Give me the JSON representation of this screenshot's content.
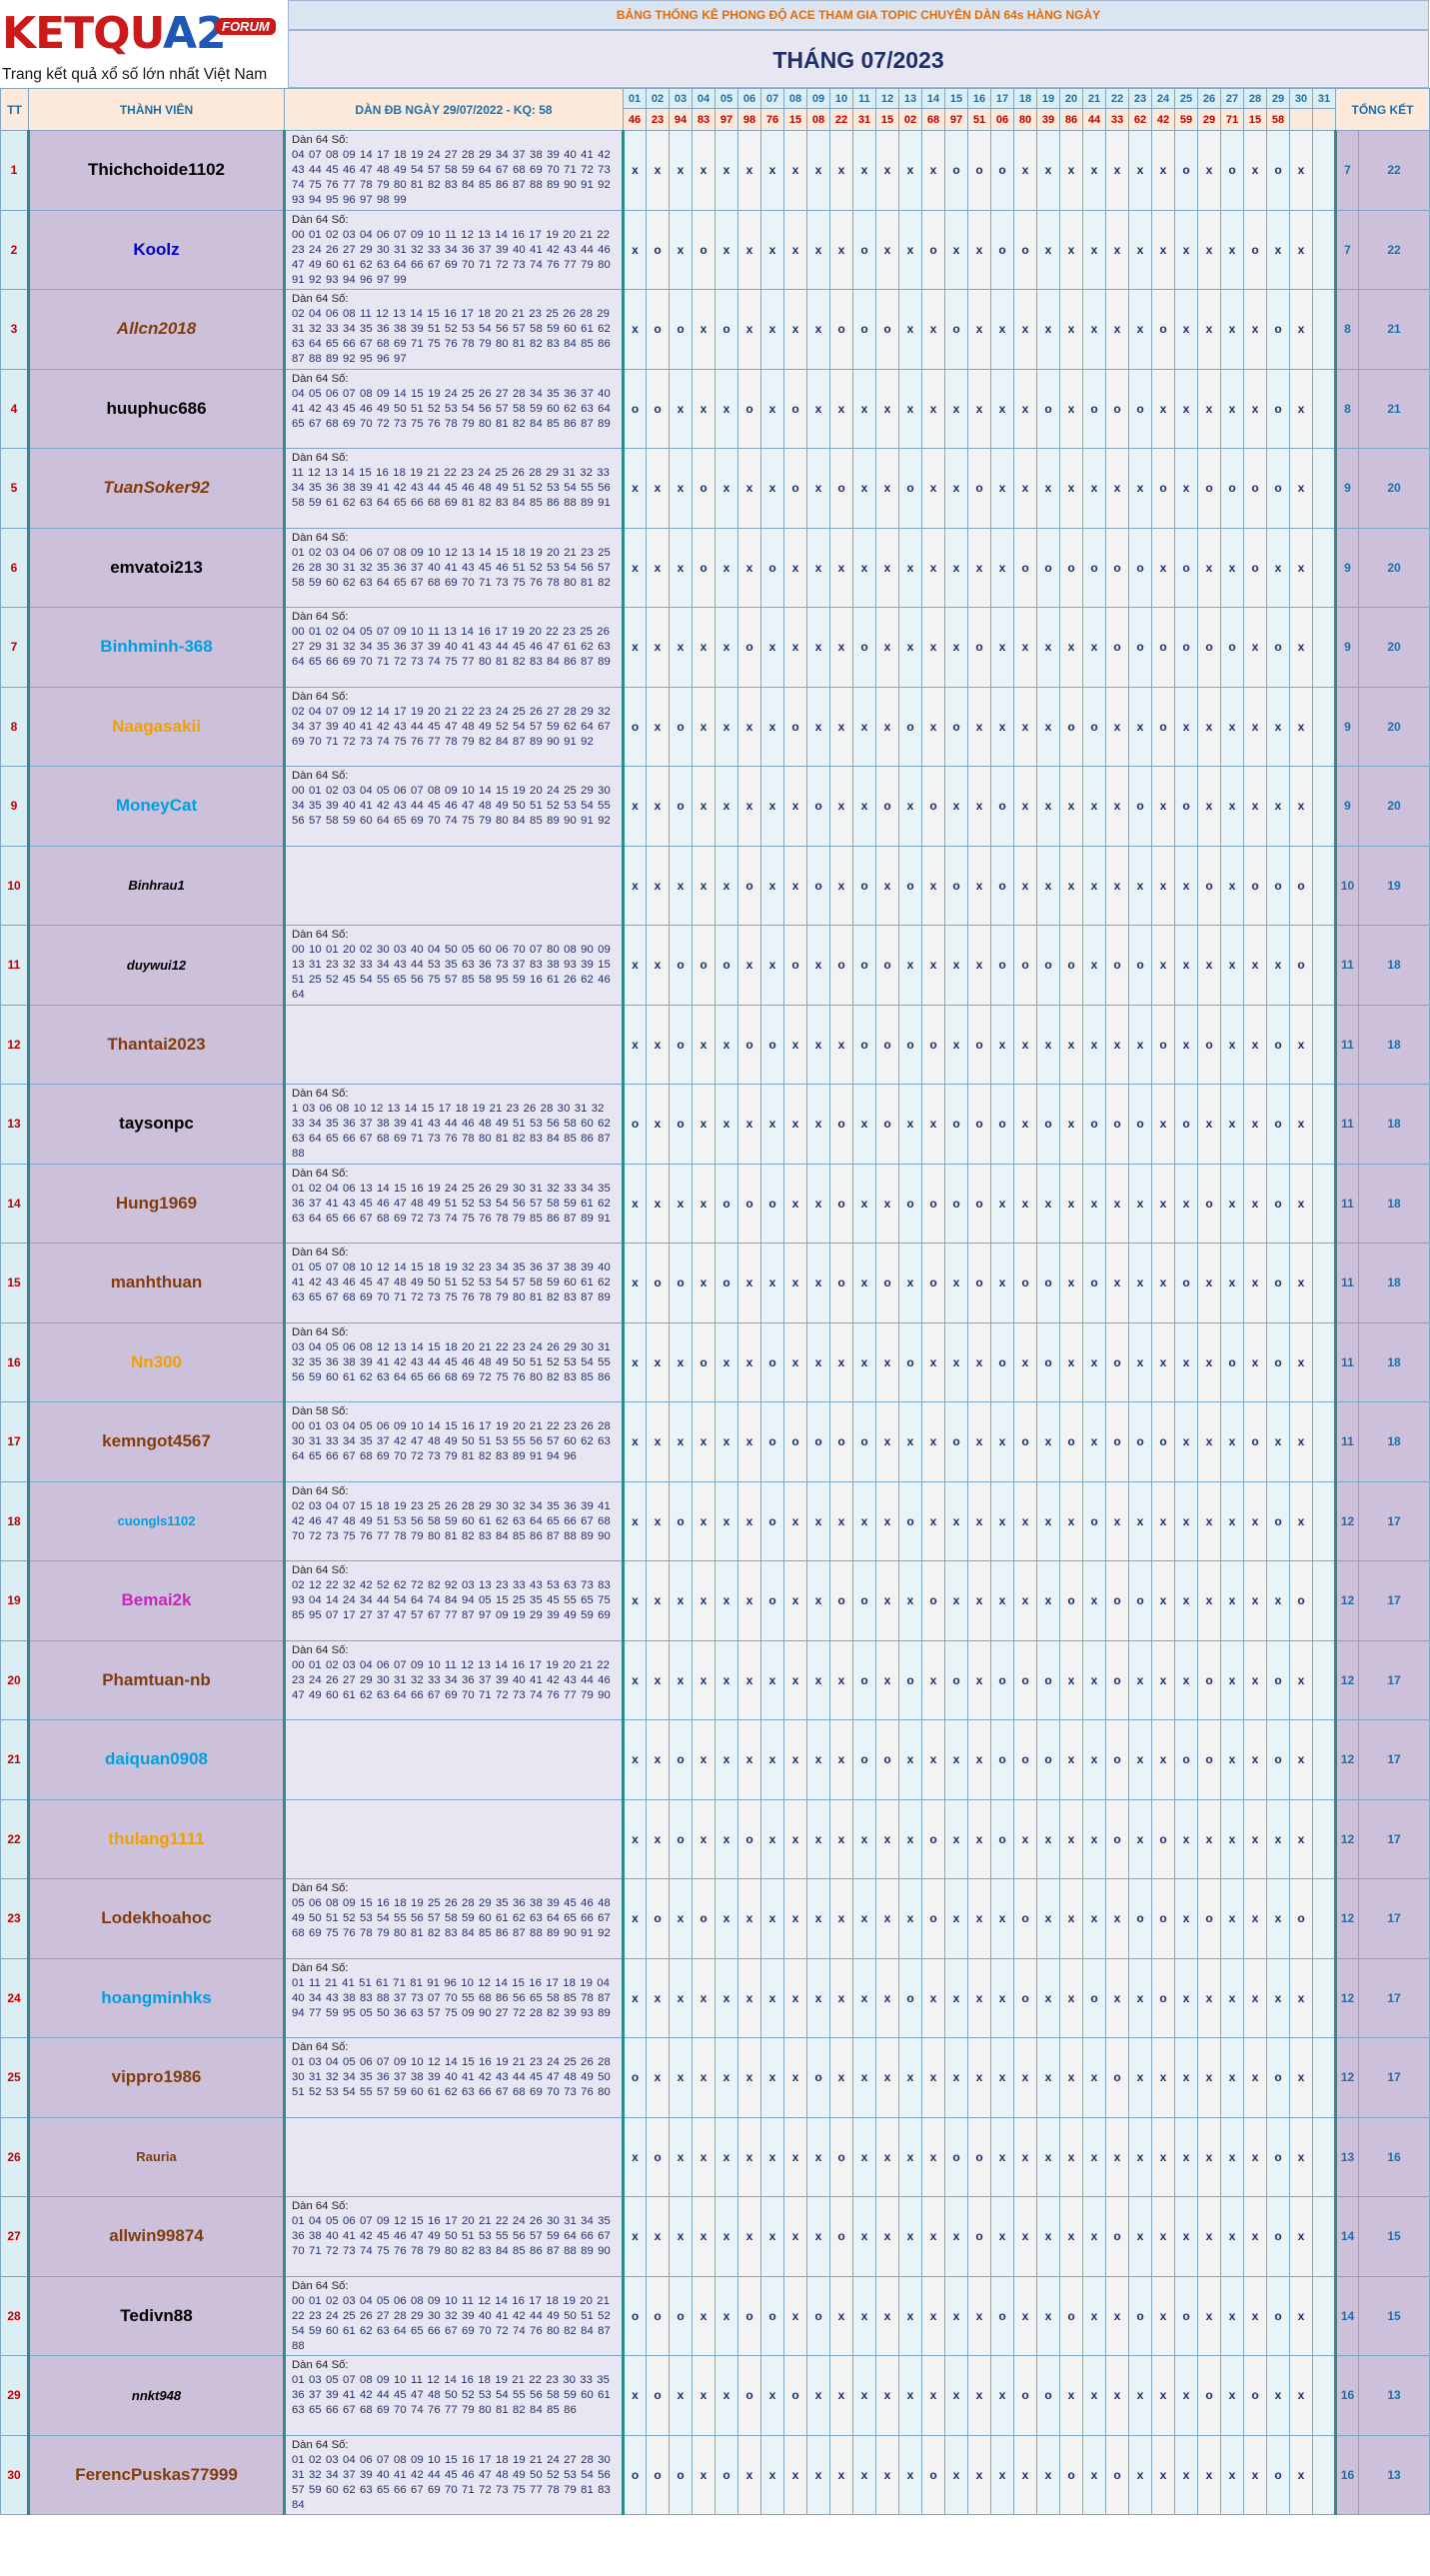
{
  "logo": {
    "part1": "KETQU",
    "part2": "A2",
    "forum": "FORUM",
    "slogan": "Trang kết quả xổ số lớn nhất Việt Nam"
  },
  "banner": "BẢNG THỐNG KÊ PHONG ĐỘ ACE THAM GIA TOPIC CHUYÊN DÀN 64s HÀNG NGÀY",
  "month_title": "THÁNG 07/2023",
  "headers": {
    "tt": "TT",
    "member": "THÀNH VIÊN",
    "dan": "DÀN ĐB NGÀY 29/07/2022 - KQ: 58",
    "summary": "TỔNG KẾT"
  },
  "days": [
    "01",
    "02",
    "03",
    "04",
    "05",
    "06",
    "07",
    "08",
    "09",
    "10",
    "11",
    "12",
    "13",
    "14",
    "15",
    "16",
    "17",
    "18",
    "19",
    "20",
    "21",
    "22",
    "23",
    "24",
    "25",
    "26",
    "27",
    "28",
    "29",
    "30",
    "31"
  ],
  "results": [
    "46",
    "23",
    "94",
    "83",
    "97",
    "98",
    "76",
    "15",
    "08",
    "22",
    "31",
    "15",
    "02",
    "68",
    "97",
    "51",
    "06",
    "80",
    "39",
    "86",
    "44",
    "33",
    "62",
    "42",
    "59",
    "29",
    "71",
    "15",
    "58",
    "",
    ""
  ],
  "colors": {
    "red": "#c00000",
    "blue": "#1f6fa8",
    "teal_border": "#2e8b8b",
    "member_bg": "#ccc0da"
  },
  "rows": [
    {
      "tt": "1",
      "name": "Thichchoide1102",
      "color": "#000000",
      "style": "normal",
      "dan_label": "Dàn 64 Số:",
      "dan": "04 07 08 09 14 17 18 19 24 27 28 29 34 37 38 39 40 41 42 43 44 45 46 47 48 49 54 57 58 59 64 67 68 69 70 71 72 73 74 75 76 77 78 79 80 81 82 83 84 85 86 87 88 89 90 91 92 93 94 95 96 97 98 99",
      "marks": "xxxxxxxxxxxxxxoooxxxxxxxoxoxox",
      "w": "7",
      "s": "22"
    },
    {
      "tt": "2",
      "name": "Koolz",
      "color": "#0000cc",
      "style": "normal",
      "dan_label": "Dàn 64 Số:",
      "dan": "00 01 02 03 04 06 07 09 10 11 12 13 14 16 17 19 20 21 22 23 24 26 27 29 30 31 32 33 34 36 37 39 40 41 42 43 44 46 47 49 60 61 62 63 64 66 67 69 70 71 72 73 74 76 77 79 80 91 92 93 94 96 97 99",
      "marks": "xoxoxxxxxxoxxoxxooxxxxxxxxxoxx",
      "w": "7",
      "s": "22"
    },
    {
      "tt": "3",
      "name": "Allcn2018",
      "color": "#843c0c",
      "style": "italic",
      "dan_label": "Dàn 64 Số:",
      "dan": "02 04 06 08 11 12 13 14 15 16 17 18 20 21 23 25 26 28 29 31 32 33 34 35 36 38 39 51 52 53 54 56 57 58 59 60 61 62 63 64 65 66 67 68 69 71 75 76 78 79 80 81 82 83 84 85 86 87 88 89 92 95 96 97",
      "marks": "xooxoxxxxoooxxoxxxxxxxxoxxxxox",
      "w": "8",
      "s": "21"
    },
    {
      "tt": "4",
      "name": "huuphuc686",
      "color": "#000000",
      "style": "normal",
      "dan_label": "Dàn 64 Số:",
      "dan": "04 05 06 07 08 09 14 15 19 24 25 26 27 28 34 35 36 37 40 41 42 43 45 46 49 50 51 52 53 54 56 57 58 59 60 62 63 64 65 67 68 69 70 72 73 75 76 78 79 80 81 82 84 85 86 87 89",
      "marks": "ooxxxoxoxxxxxxxxxxoxoooxxxxxox",
      "w": "8",
      "s": "21"
    },
    {
      "tt": "5",
      "name": "TuanSoker92",
      "color": "#843c0c",
      "style": "italic",
      "dan_label": "Dàn 64 Số:",
      "dan": "11 12 13 14 15 16 18 19 21 22 23 24 25 26 28 29 31 32 33 34 35 36 38 39 41 42 43 44 45 46 48 49 51 52 53 54 55 56 58 59 61 62 63 64 65 66 68 69 81 82 83 84 85 86 88 89 91",
      "marks": "xxxoxxxoxoxxoxxoxxxxxxxoxoooox",
      "w": "9",
      "s": "20"
    },
    {
      "tt": "6",
      "name": "emvatoi213",
      "color": "#000000",
      "style": "normal",
      "dan_label": "Dàn 64 Số:",
      "dan": "01 02 03 04 06 07 08 09 10 12 13 14 15 18 19 20 21 23 25 26 28 30 31 32 35 36 37 40 41 43 45 46 51 52 53 54 56 57 58 59 60 62 63 64 65 67 68 69 70 71 73 75 76 78 80 81 82",
      "marks": "xxxoxxoxxxxxxxxxxooooooxoxxoxx",
      "w": "9",
      "s": "20"
    },
    {
      "tt": "7",
      "name": "Binhminh-368",
      "color": "#00a0e0",
      "style": "normal",
      "dan_label": "Dàn 64 Số:",
      "dan": "00 01 02 04 05 07 09 10 11 13 14 16 17 19 20 22 23 25 26 27 29 31 32 34 35 36 37 39 40 41 43 44 45 46 47 61 62 63 64 65 66 69 70 71 72 73 74 75 77 80 81 82 83 84 86 87 89",
      "marks": "xxxxxoxxxxoxxxxoxxxxxooooooxox",
      "w": "9",
      "s": "20"
    },
    {
      "tt": "8",
      "name": "Naagasakii",
      "color": "#f0a000",
      "style": "normal",
      "dan_label": "Dàn 64 Số:",
      "dan": "02 04 07 09 12 14 17 19 20 21 22 23 24 25 26 27 28 29 32 34 37 39 40 41 42 43 44 45 47 48 49 52 54 57 59 62 64 67 69 70 71 72 73 74 75 76 77 78 79 82 84 87 89 90 91 92",
      "marks": "oxoxxxxoxxxxoxoxxxxooxxoxxxxxx",
      "w": "9",
      "s": "20"
    },
    {
      "tt": "9",
      "name": "MoneyCat",
      "color": "#00a0e0",
      "style": "normal",
      "dan_label": "Dàn 64 Số:",
      "dan": "00 01 02 03 04 05 06 07 08 09 10 14 15 19 20 24 25 29 30 34 35 39 40 41 42 43 44 45 46 47 48 49 50 51 52 53 54 55 56 57 58 59 60 64 65 69 70 74 75 79 80 84 85 89 90 91 92",
      "marks": "xxoxxxxxoxxoxoxxoxxxxxoxoxxxxx",
      "w": "9",
      "s": "20"
    },
    {
      "tt": "10",
      "name": "Binhrau1",
      "color": "#000000",
      "style": "italic-small",
      "dan_label": "",
      "dan": "",
      "marks": "xxxxxoxxoxoxoxoxoxxxxxxxxoxooo",
      "w": "10",
      "s": "19"
    },
    {
      "tt": "11",
      "name": "duywui12",
      "color": "#000000",
      "style": "italic-small",
      "dan_label": "Dàn 64 Số:",
      "dan": "00 10 01 20 02 30 03 40 04 50 05 60 06 70 07 80 08 90 09 13 31 23 32 33 34 43 44 53 35 63 36 73 37 83 38 93 39 15 51 25 52 45 54 55 65 56 75 57 85 58 95 59 16 61 26 62 46 64",
      "marks": "xxoooxxoxoooxxxxooooxooxxxxxxo",
      "w": "11",
      "s": "18"
    },
    {
      "tt": "12",
      "name": "Thantai2023",
      "color": "#843c0c",
      "style": "normal",
      "dan_label": "",
      "dan": "",
      "marks": "xxoxxooxxxooooxoxxxxxxxoxoxxox",
      "w": "11",
      "s": "18"
    },
    {
      "tt": "13",
      "name": "taysonpc",
      "color": "#000000",
      "style": "normal",
      "dan_label": "Dàn 64 Số:",
      "dan": "1 03 06 08 10 12 13 14 15 17 18 19 21 23 26 28 30 31 32 33 34 35 36 37 38 39 41 43 44 46 48 49 51 53 56 58 60 62 63 64 65 66 67 68 69 71 73 76 78 80 81 82 83 84 85 86 87 88",
      "marks": "oxoxxxxxxoxoxxoooxoxoooxoxxxox",
      "w": "11",
      "s": "18"
    },
    {
      "tt": "14",
      "name": "Hung1969",
      "color": "#843c0c",
      "style": "normal",
      "dan_label": "Dàn 64 Số:",
      "dan": "01 02 04 06 13 14 15 16 19 24 25 26 29 30 31 32 33 34 35 36 37 41 43 45 46 47 48 49 51 52 53 54 56 57 58 59 61 62 63 64 65 66 67 68 69 72 73 74 75 76 78 79 85 86 87 89 91",
      "marks": "xxxxoooxxoxxooooxxxxxxxxxoxxox",
      "w": "11",
      "s": "18"
    },
    {
      "tt": "15",
      "name": "manhthuan",
      "color": "#843c0c",
      "style": "normal",
      "dan_label": "Dàn 64 Số:",
      "dan": "01 05 07 08 10 12 14 15 18 19 32 23 34 35 36 37 38 39 40 41 42 43 46 45 47 48 49 50 51 52 53 54 57 58 59 60 61 62 63 65 67 68 69 70 71 72 73 75 76 78 79 80 81 82 83 87 89",
      "marks": "xooxoxxxxoxoxoxoxooxoxxxoxxxox",
      "w": "11",
      "s": "18"
    },
    {
      "tt": "16",
      "name": "Nn300",
      "color": "#f0a000",
      "style": "normal",
      "dan_label": "Dàn 64 Số:",
      "dan": "03 04 05 06 08 12 13 14 15 18 20 21 22 23 24 26 29 30 31 32 35 36 38 39 41 42 43 44 45 46 48 49 50 51 52 53 54 55 56 59 60 61 62 63 64 65 66 68 69 72 75 76 80 82 83 85 86",
      "marks": "xxxoxxoxxxxxoxxxoxoxxoxxxxoxox",
      "w": "11",
      "s": "18"
    },
    {
      "tt": "17",
      "name": "kemngot4567",
      "color": "#843c0c",
      "style": "normal",
      "dan_label": "Dàn 58 Số:",
      "dan": "00 01 03 04 05 06 09 10 14 15 16 17 19 20 21 22 23 26 28 30 31 33 34 35 37 42 47 48 49 50 51 53 55 56 57 60 62 63 64 65 66 67 68 69 70 72 73 79 81 82 83 89 91 94 96",
      "marks": "xxxxxxoooooxxxoxxoxoxoooxxxoxx",
      "w": "11",
      "s": "18"
    },
    {
      "tt": "18",
      "name": "cuongls1102",
      "color": "#00a0e0",
      "style": "small",
      "dan_label": "Dàn 64 Số:",
      "dan": "02 03 04 07 15 18 19 23 25 26 28 29 30 32 34 35 36 39 41 42 46 47 48 49 51 53 56 58 59 60 61 62 63 64 65 66 67 68 70 72 73 75 76 77 78 79 80 81 82 83 84 85 86 87 88 89 90",
      "marks": "xxoxxxoxxxxxoxxxxxxxoxxxxxxxox",
      "w": "12",
      "s": "17"
    },
    {
      "tt": "19",
      "name": "Bemai2k",
      "color": "#d020c0",
      "style": "normal",
      "dan_label": "Dàn 64 Số:",
      "dan": "02 12 22 32 42 52 62 72 82 92 03 13 23 33 43 53 63 73 83 93 04 14 24 34 44 54 64 74 84 94 05 15 25 35 45 55 65 75 85 95 07 17 27 37 47 57 67 77 87 97 09 19 29 39 49 59 69",
      "marks": "xxxxxxoxxooxxoxxxxxoxooxxxxxxo",
      "w": "12",
      "s": "17"
    },
    {
      "tt": "20",
      "name": "Phamtuan-nb",
      "color": "#843c0c",
      "style": "normal",
      "dan_label": "Dàn 64 Số:",
      "dan": "00 01 02 03 04 06 07 09 10 11 12 13 14 16 17 19 20 21 22 23 24 26 27 29 30 31 32 33 34 36 37 39 40 41 42 43 44 46 47 49 60 61 62 63 64 66 67 69 70 71 72 73 74 76 77 79 90",
      "marks": "xxxxxxxxxxoxoxoxoooxxoxxxoxxox",
      "w": "12",
      "s": "17"
    },
    {
      "tt": "21",
      "name": "daiquan0908",
      "color": "#00a0e0",
      "style": "normal",
      "dan_label": "",
      "dan": "",
      "marks": "xxoxxxxxxxooxxxxoooxxoxxooxxox",
      "w": "12",
      "s": "17"
    },
    {
      "tt": "22",
      "name": "thulang1111",
      "color": "#f0a000",
      "style": "normal",
      "dan_label": "",
      "dan": "",
      "marks": "xxoxxoxxxxxxxoxxoxxxxoxoxxxxxx",
      "w": "12",
      "s": "17"
    },
    {
      "tt": "23",
      "name": "Lodekhoahoc",
      "color": "#843c0c",
      "style": "normal",
      "dan_label": "Dàn 64 Số:",
      "dan": "05 06 08 09 15 16 18 19 25 26 28 29 35 36 38 39 45 46 48 49 50 51 52 53 54 55 56 57 58 59 60 61 62 63 64 65 66 67 68 69 75 76 78 79 80 81 82 83 84 85 86 87 88 89 90 91 92",
      "marks": "xoxoxxxxxxxxxoxxxoxxxxooxoxxxo",
      "w": "12",
      "s": "17"
    },
    {
      "tt": "24",
      "name": "hoangminhks",
      "color": "#00a0e0",
      "style": "normal",
      "dan_label": "Dàn 64 Số:",
      "dan": "01 11 21 41 51 61 71 81 91 96 10 12 14 15 16 17 18 19 04 40 34 43 38 83 88 37 73 07 70 55 68 86 56 65 58 85 78 87 94 77 59 95 05 50 36 63 57 75 09 90 27 72 28 82 39 93 89",
      "marks": "xxxxxxxxxxxxoxxxxoxxoxxoxxxxxx",
      "w": "12",
      "s": "17"
    },
    {
      "tt": "25",
      "name": "vippro1986",
      "color": "#843c0c",
      "style": "normal",
      "dan_label": "Dàn 64 Số:",
      "dan": "01 03 04 05 06 07 09 10 12 14 15 16 19 21 23 24 25 26 28 30 31 32 34 35 36 37 38 39 40 41 42 43 44 45 47 48 49 50 51 52 53 54 55 57 59 60 61 62 63 66 67 68 69 70 73 76 80",
      "marks": "oxxxxxxxoxxxxxxxxxxxxoxxxxxxox",
      "w": "12",
      "s": "17"
    },
    {
      "tt": "26",
      "name": "Rauria",
      "color": "#843c0c",
      "style": "small",
      "dan_label": "",
      "dan": "",
      "marks": "xoxxxxxxxoxxxxooxxxxxxxxxxxxox",
      "w": "13",
      "s": "16"
    },
    {
      "tt": "27",
      "name": "allwin99874",
      "color": "#843c0c",
      "style": "normal",
      "dan_label": "Dàn 64 Số:",
      "dan": "01 04 05 06 07 09 12 15 16 17 20 21 22 24 26 30 31 34 35 36 38 40 41 42 45 46 47 49 50 51 53 55 56 57 59 64 66 67 70 71 72 73 74 75 76 78 79 80 82 83 84 85 86 87 88 89 90",
      "marks": "xxxxxxxxxoxxxxxoxxxxxoxxxxxxox",
      "w": "14",
      "s": "15"
    },
    {
      "tt": "28",
      "name": "Tedivn88",
      "color": "#000000",
      "style": "normal",
      "dan_label": "Dàn 64 Số:",
      "dan": "00 01 02 03 04 05 06 08 09 10 11 12 14 16 17 18 19 20 21 22 23 24 25 26 27 28 29 30 32 39 40 41 42 44 49 50 51 52 54 59 60 61 62 63 64 65 66 67 69 70 72 74 76 80 82 84 87 88",
      "marks": "oooxxooxoxxxxxxxoxxoxxoxoxxxox",
      "w": "14",
      "s": "15"
    },
    {
      "tt": "29",
      "name": "nnkt948",
      "color": "#000000",
      "style": "italic-small",
      "dan_label": "Dàn 64 Số:",
      "dan": "01 03 05 07 08 09 10 11 12 14 16 18 19 21 22 23 30 33 35 36 37 39 41 42 44 45 47 48 50 52 53 54 55 56 58 59 60 61 63 65 66 67 68 69 70 74 76 77 79 80 81 82 84 85 86",
      "marks": "xoxxxoxoxxxxxxxxxooxxxxxxoxoxx",
      "w": "16",
      "s": "13"
    },
    {
      "tt": "30",
      "name": "FerencPuskas77999",
      "color": "#843c0c",
      "style": "normal",
      "dan_label": "Dàn 64 Số:",
      "dan": "01 02 03 04 06 07 08 09 10 15 16 17 18 19 21 24 27 28 30 31 32 34 37 39 40 41 42 44 45 46 47 48 49 50 52 53 54 56 57 59 60 62 63 65 66 67 69 70 71 72 73 75 77 78 79 81 83 84",
      "marks": "oooxoxxxxxxxxoxxxxxoxoxxxxxxox",
      "w": "16",
      "s": "13"
    }
  ]
}
